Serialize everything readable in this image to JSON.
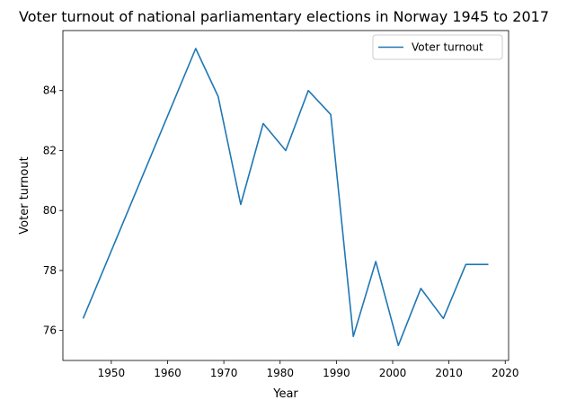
{
  "chart_data": {
    "type": "line",
    "title": "Voter turnout of national parliamentary elections in Norway 1945 to 2017",
    "xlabel": "Year",
    "ylabel": "Voter turnout",
    "xlim": [
      1941.4,
      2020.6
    ],
    "ylim": [
      75.0,
      86.0
    ],
    "xticks": [
      1950,
      1960,
      1970,
      1980,
      1990,
      2000,
      2010,
      2020
    ],
    "yticks": [
      76,
      78,
      80,
      82,
      84
    ],
    "grid": false,
    "legend": {
      "position": "top-right"
    },
    "series": [
      {
        "name": "Voter turnout",
        "color": "#1f77b4",
        "x": [
          1945,
          1965,
          1969,
          1973,
          1977,
          1981,
          1985,
          1989,
          1993,
          1997,
          2001,
          2005,
          2009,
          2013,
          2017
        ],
        "y": [
          76.4,
          85.4,
          83.8,
          80.2,
          82.9,
          82.0,
          84.0,
          83.2,
          75.8,
          78.3,
          75.5,
          77.4,
          76.4,
          78.2,
          78.2
        ]
      }
    ]
  }
}
